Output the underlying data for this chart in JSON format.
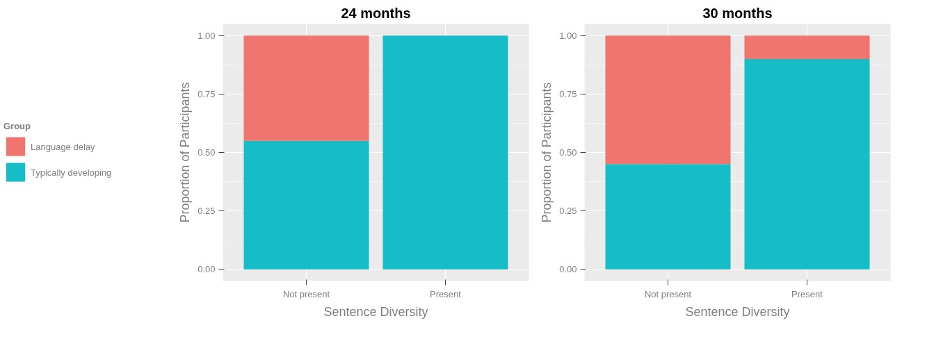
{
  "chart_data": [
    {
      "type": "bar",
      "title": "24 months",
      "xlabel": "Sentence Diversity",
      "ylabel": "Proportion of Participants",
      "categories": [
        "Not present",
        "Present"
      ],
      "stacked": true,
      "legend": "left",
      "legend_title": "Group",
      "grid": true,
      "ylim": [
        -0.05,
        1.05
      ],
      "yticks": [
        {
          "value": 0,
          "label": "0.00"
        },
        {
          "value": 0.25,
          "label": "0.25"
        },
        {
          "value": 0.5,
          "label": "0.50"
        },
        {
          "value": 0.75,
          "label": "0.75"
        },
        {
          "value": 1,
          "label": "1.00"
        }
      ],
      "series": [
        {
          "name": "Typically developing",
          "color": "#17bdc6",
          "values": [
            0.55,
            1.0
          ]
        },
        {
          "name": "Language delay",
          "color": "#f1756f",
          "values": [
            0.45,
            0.0
          ]
        }
      ]
    },
    {
      "type": "bar",
      "title": "30 months",
      "xlabel": "Sentence Diversity",
      "ylabel": "Proportion of Participants",
      "categories": [
        "Not present",
        "Present"
      ],
      "stacked": true,
      "grid": true,
      "ylim": [
        -0.05,
        1.05
      ],
      "yticks": [
        {
          "value": 0,
          "label": "0.00"
        },
        {
          "value": 0.25,
          "label": "0.25"
        },
        {
          "value": 0.5,
          "label": "0.50"
        },
        {
          "value": 0.75,
          "label": "0.75"
        },
        {
          "value": 1,
          "label": "1.00"
        }
      ],
      "series": [
        {
          "color": "#17bdc6",
          "values": [
            0.45,
            0.9
          ]
        },
        {
          "color": "#f1756f",
          "values": [
            0.55,
            0.1
          ]
        }
      ]
    }
  ]
}
